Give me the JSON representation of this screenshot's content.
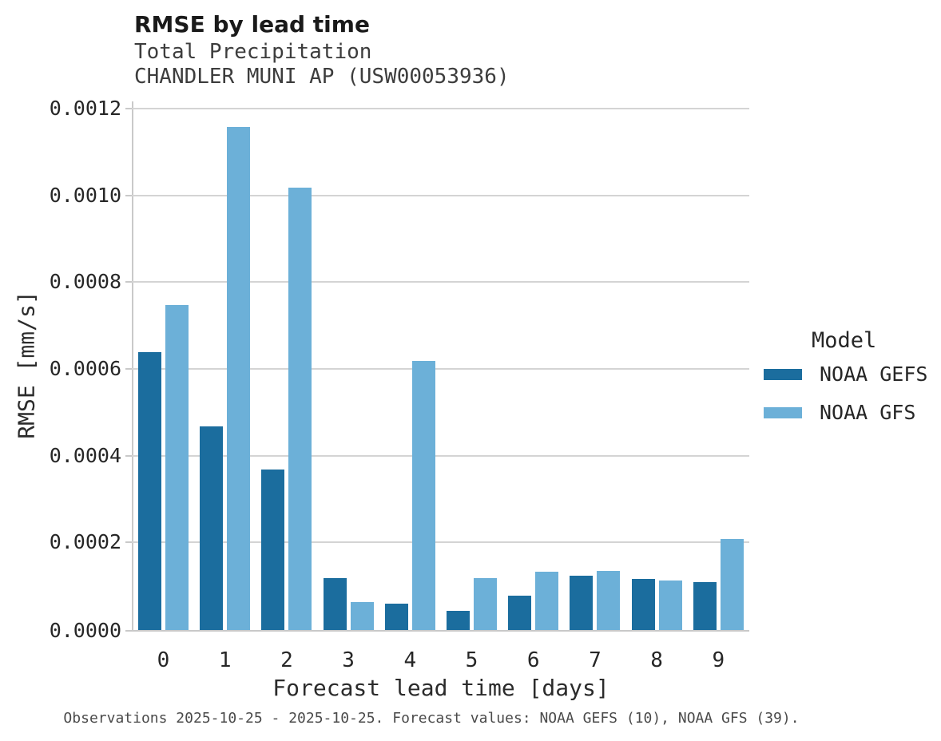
{
  "header": {
    "title": "RMSE by lead time",
    "subtitle_line1": "Total Precipitation",
    "subtitle_line2": "CHANDLER MUNI AP (USW00053936)"
  },
  "caption": "Observations 2025-10-25 - 2025-10-25. Forecast values: NOAA GEFS (10), NOAA GFS (39).",
  "legend": {
    "title": "Model",
    "items": [
      {
        "label": "NOAA GEFS",
        "color": "#1b6d9e"
      },
      {
        "label": "NOAA GFS",
        "color": "#6cb0d8"
      }
    ]
  },
  "colors": {
    "gefs_bar": "#1b6d9e",
    "gfs_bar": "#6cb0d8",
    "gridline": "#d4d4d4",
    "spine": "#c9c9c9"
  },
  "chart_data": {
    "type": "bar",
    "title": "RMSE by lead time",
    "subtitle": [
      "Total Precipitation",
      "CHANDLER MUNI AP (USW00053936)"
    ],
    "xlabel": "Forecast lead time [days]",
    "ylabel": "RMSE [mm/s]",
    "categories": [
      "0",
      "1",
      "2",
      "3",
      "4",
      "5",
      "6",
      "7",
      "8",
      "9"
    ],
    "series": [
      {
        "name": "NOAA GEFS",
        "color": "#1b6d9e",
        "values": [
          0.00064,
          0.00047,
          0.00037,
          0.00012,
          6e-05,
          4.5e-05,
          8e-05,
          0.000125,
          0.000118,
          0.00011
        ]
      },
      {
        "name": "NOAA GFS",
        "color": "#6cb0d8",
        "values": [
          0.00075,
          0.00116,
          0.00102,
          6.5e-05,
          0.00062,
          0.00012,
          0.000135,
          0.000137,
          0.000114,
          0.00021
        ]
      }
    ],
    "ylim": [
      0,
      0.0012
    ],
    "yticks": [
      0.0,
      0.0002,
      0.0004,
      0.0006,
      0.0008,
      0.001,
      0.0012
    ],
    "ytick_labels": [
      "0.0000",
      "0.0002",
      "0.0004",
      "0.0006",
      "0.0008",
      "0.0010",
      "0.0012"
    ],
    "grid": "horizontal",
    "legend_title": "Model",
    "legend_position": "right"
  }
}
